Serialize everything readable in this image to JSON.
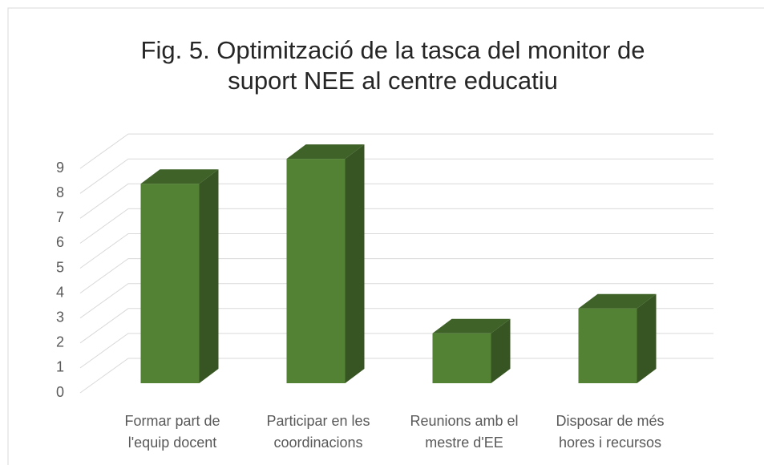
{
  "chart_data": {
    "type": "bar3d",
    "title": "Fig. 5. Optimització de la tasca del monitor de suport NEE al centre educatiu",
    "categories": [
      "Formar part de l'equip docent",
      "Participar en les coordinacions",
      "Reunions amb el mestre d'EE",
      "Disposar de més hores i recursos"
    ],
    "values": [
      8,
      9,
      2,
      3
    ],
    "color": "#548235",
    "ylim": [
      0,
      9
    ],
    "yticks": [
      0,
      1,
      2,
      3,
      4,
      5,
      6,
      7,
      8,
      9
    ],
    "grid": true
  }
}
